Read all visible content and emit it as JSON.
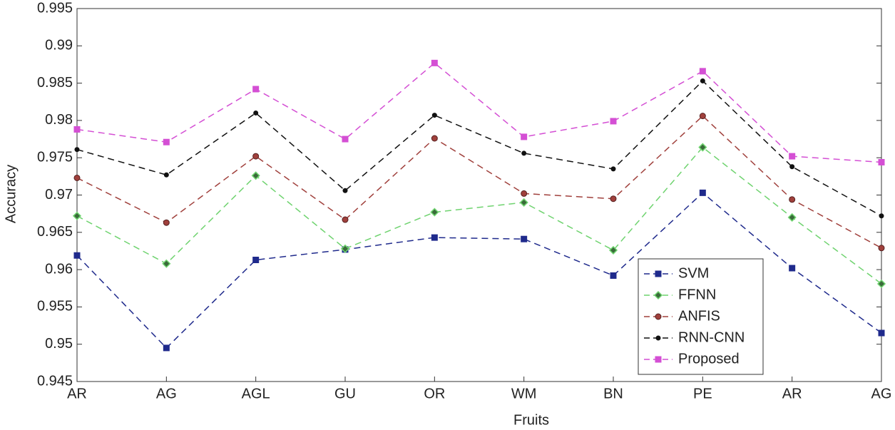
{
  "chart_data": {
    "type": "line",
    "x_label": "Fruits",
    "y_label": "Accuracy",
    "categories": [
      "AR",
      "AG",
      "AGL",
      "GU",
      "OR",
      "WM",
      "BN",
      "PE",
      "AR",
      "AG"
    ],
    "ylim": [
      0.945,
      0.995
    ],
    "yticks": [
      0.945,
      0.95,
      0.955,
      0.96,
      0.965,
      0.97,
      0.975,
      0.98,
      0.985,
      0.99,
      0.995
    ],
    "grid": false,
    "legend": "lower right",
    "line_style": "dashed",
    "series": [
      {
        "name": "SVM",
        "color": "#1f2a8c",
        "marker": "square",
        "values": [
          0.9619,
          0.9495,
          0.9613,
          0.9627,
          0.9643,
          0.9641,
          0.9592,
          0.9703,
          0.9602,
          0.9515
        ]
      },
      {
        "name": "FFNN",
        "color": "#6fd36f",
        "marker": "diamond",
        "values": [
          0.9672,
          0.9608,
          0.9726,
          0.9628,
          0.9677,
          0.969,
          0.9626,
          0.9764,
          0.967,
          0.9581
        ]
      },
      {
        "name": "ANFIS",
        "color": "#a0403c",
        "marker": "circle",
        "values": [
          0.9723,
          0.9663,
          0.9752,
          0.9667,
          0.9776,
          0.9702,
          0.9695,
          0.9806,
          0.9694,
          0.9629
        ]
      },
      {
        "name": "RNN-CNN",
        "color": "#111111",
        "marker": "dot",
        "values": [
          0.9761,
          0.9727,
          0.981,
          0.9706,
          0.9807,
          0.9756,
          0.9735,
          0.9853,
          0.9738,
          0.9672
        ]
      },
      {
        "name": "Proposed",
        "color": "#d44fd4",
        "marker": "square",
        "values": [
          0.9788,
          0.9771,
          0.9842,
          0.9775,
          0.9877,
          0.9778,
          0.9799,
          0.9866,
          0.9752,
          0.9744
        ]
      }
    ]
  }
}
